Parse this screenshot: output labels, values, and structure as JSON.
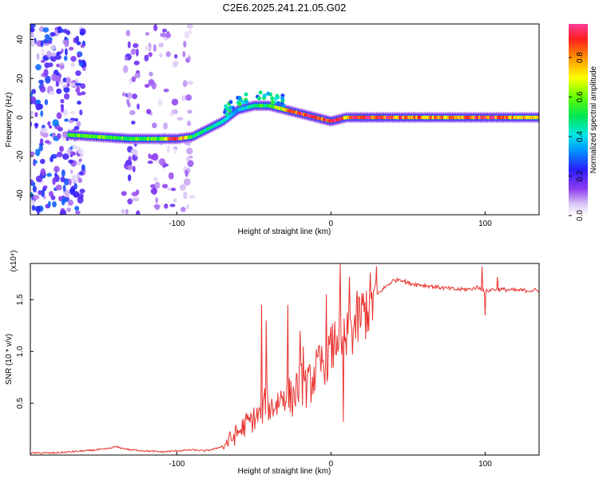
{
  "title": "C2E6.2025.241.21.05.G02",
  "colors": {
    "snr_line": "#e8322e",
    "frame": "#000000",
    "background": "#ffffff"
  },
  "chart_data": [
    {
      "type": "heatmap",
      "xlabel": "Height of straight line (km)",
      "ylabel": "Frequency (Hz)",
      "xlim": [
        -195,
        135
      ],
      "ylim": [
        -50,
        48
      ],
      "x_ticks": [
        -100,
        0,
        100
      ],
      "y_ticks": [
        -40,
        -20,
        0,
        20,
        40
      ],
      "colorbar": {
        "label": "Normalized spectral amplitude",
        "range": [
          0.0,
          0.97
        ],
        "ticks": [
          "0.0",
          "0.2",
          "0.4",
          "0.6",
          "0.8"
        ],
        "tick_values": [
          0.0,
          0.2,
          0.4,
          0.6,
          0.8
        ]
      },
      "ridge": [
        {
          "x": -170,
          "y": -9,
          "v": 0.55
        },
        {
          "x": -150,
          "y": -10,
          "v": 0.6
        },
        {
          "x": -130,
          "y": -11,
          "v": 0.55
        },
        {
          "x": -110,
          "y": -11,
          "v": 0.6
        },
        {
          "x": -100,
          "y": -11,
          "v": 0.95
        },
        {
          "x": -90,
          "y": -10,
          "v": 0.5
        },
        {
          "x": -80,
          "y": -6,
          "v": 0.45
        },
        {
          "x": -70,
          "y": -2,
          "v": 0.4
        },
        {
          "x": -60,
          "y": 4,
          "v": 0.35
        },
        {
          "x": -50,
          "y": 6,
          "v": 0.5
        },
        {
          "x": -40,
          "y": 6,
          "v": 0.55
        },
        {
          "x": -30,
          "y": 4,
          "v": 0.75
        },
        {
          "x": -20,
          "y": 2,
          "v": 0.9
        },
        {
          "x": -10,
          "y": 0,
          "v": 0.85
        },
        {
          "x": 0,
          "y": -2,
          "v": 0.9
        },
        {
          "x": 10,
          "y": 0,
          "v": 0.8
        },
        {
          "x": 20,
          "y": 0,
          "v": 0.95
        },
        {
          "x": 40,
          "y": 0,
          "v": 0.85
        },
        {
          "x": 60,
          "y": 0,
          "v": 0.8
        },
        {
          "x": 80,
          "y": 0,
          "v": 0.75
        },
        {
          "x": 100,
          "y": 0,
          "v": 0.9
        },
        {
          "x": 120,
          "y": 0,
          "v": 0.75
        },
        {
          "x": 135,
          "y": 0,
          "v": 0.7
        }
      ]
    },
    {
      "type": "line",
      "xlabel": "Height of straight line (km)",
      "ylabel": "SNR (10 * v/v)",
      "y_multiplier": "(x10⁴)",
      "xlim": [
        -195,
        135
      ],
      "ylim": [
        0,
        1.85
      ],
      "x_ticks": [
        -100,
        0,
        100
      ],
      "y_ticks": [
        0.5,
        1.0,
        1.5
      ],
      "y_tick_labels": [
        "0.5",
        "1.0",
        "1.5"
      ],
      "series": [
        {
          "x": [
            -195,
            -180,
            -160,
            -145,
            -140,
            -130,
            -110,
            -100,
            -90,
            -82,
            -75,
            -70,
            -65,
            -60,
            -55,
            -50,
            -45,
            -42,
            -40,
            -35,
            -30,
            -25,
            -20,
            -15,
            -10,
            -5,
            0,
            3,
            5,
            7,
            8,
            12,
            15,
            20,
            25,
            30,
            35,
            40,
            45,
            50,
            60,
            70,
            80,
            90,
            95,
            98,
            100,
            105,
            110,
            120,
            135
          ],
          "y": [
            0.02,
            0.02,
            0.04,
            0.06,
            0.08,
            0.05,
            0.03,
            0.04,
            0.05,
            0.04,
            0.06,
            0.09,
            0.15,
            0.22,
            0.3,
            0.35,
            0.4,
            0.55,
            0.45,
            0.5,
            0.6,
            0.55,
            0.7,
            0.65,
            0.8,
            0.9,
            1.0,
            1.1,
            1.2,
            0.9,
            1.05,
            1.15,
            1.25,
            1.35,
            1.45,
            1.55,
            1.62,
            1.68,
            1.7,
            1.66,
            1.64,
            1.62,
            1.6,
            1.6,
            1.62,
            1.6,
            1.58,
            1.6,
            1.6,
            1.59,
            1.59
          ]
        }
      ]
    }
  ]
}
